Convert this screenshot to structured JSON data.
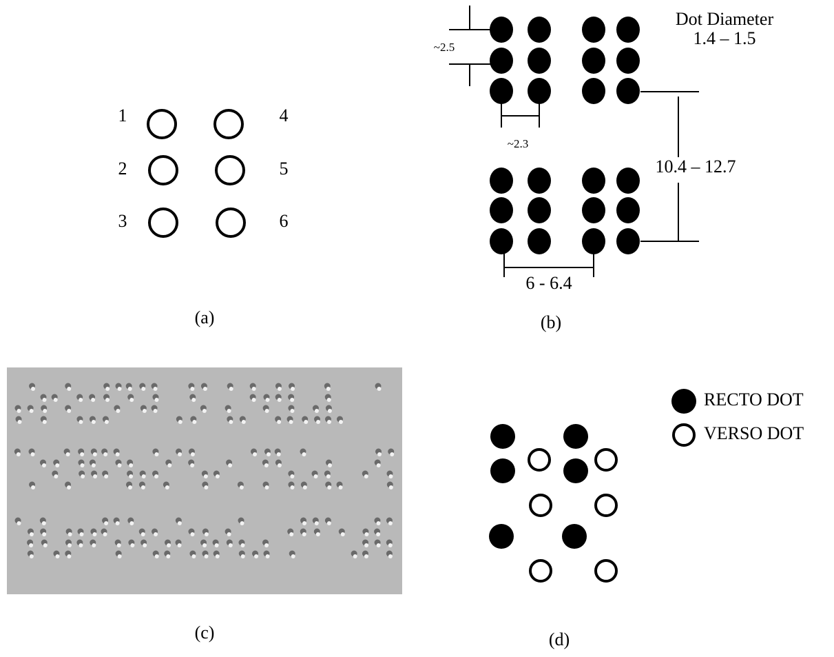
{
  "panel_a": {
    "dot_labels": [
      "1",
      "2",
      "3",
      "4",
      "5",
      "6"
    ],
    "caption": "(a)"
  },
  "panel_b": {
    "diameter_title": "Dot Diameter",
    "diameter_value": "1.4 – 1.5",
    "vertical_spacing": "~2.5",
    "horizontal_spacing": "~2.3",
    "line_spacing": "10.4 – 12.7",
    "cell_spacing": "6 - 6.4",
    "caption": "(b)"
  },
  "panel_c": {
    "caption": "(c)"
  },
  "panel_d": {
    "legend": [
      "RECTO DOT",
      "VERSO DOT"
    ],
    "caption": "(d)"
  }
}
